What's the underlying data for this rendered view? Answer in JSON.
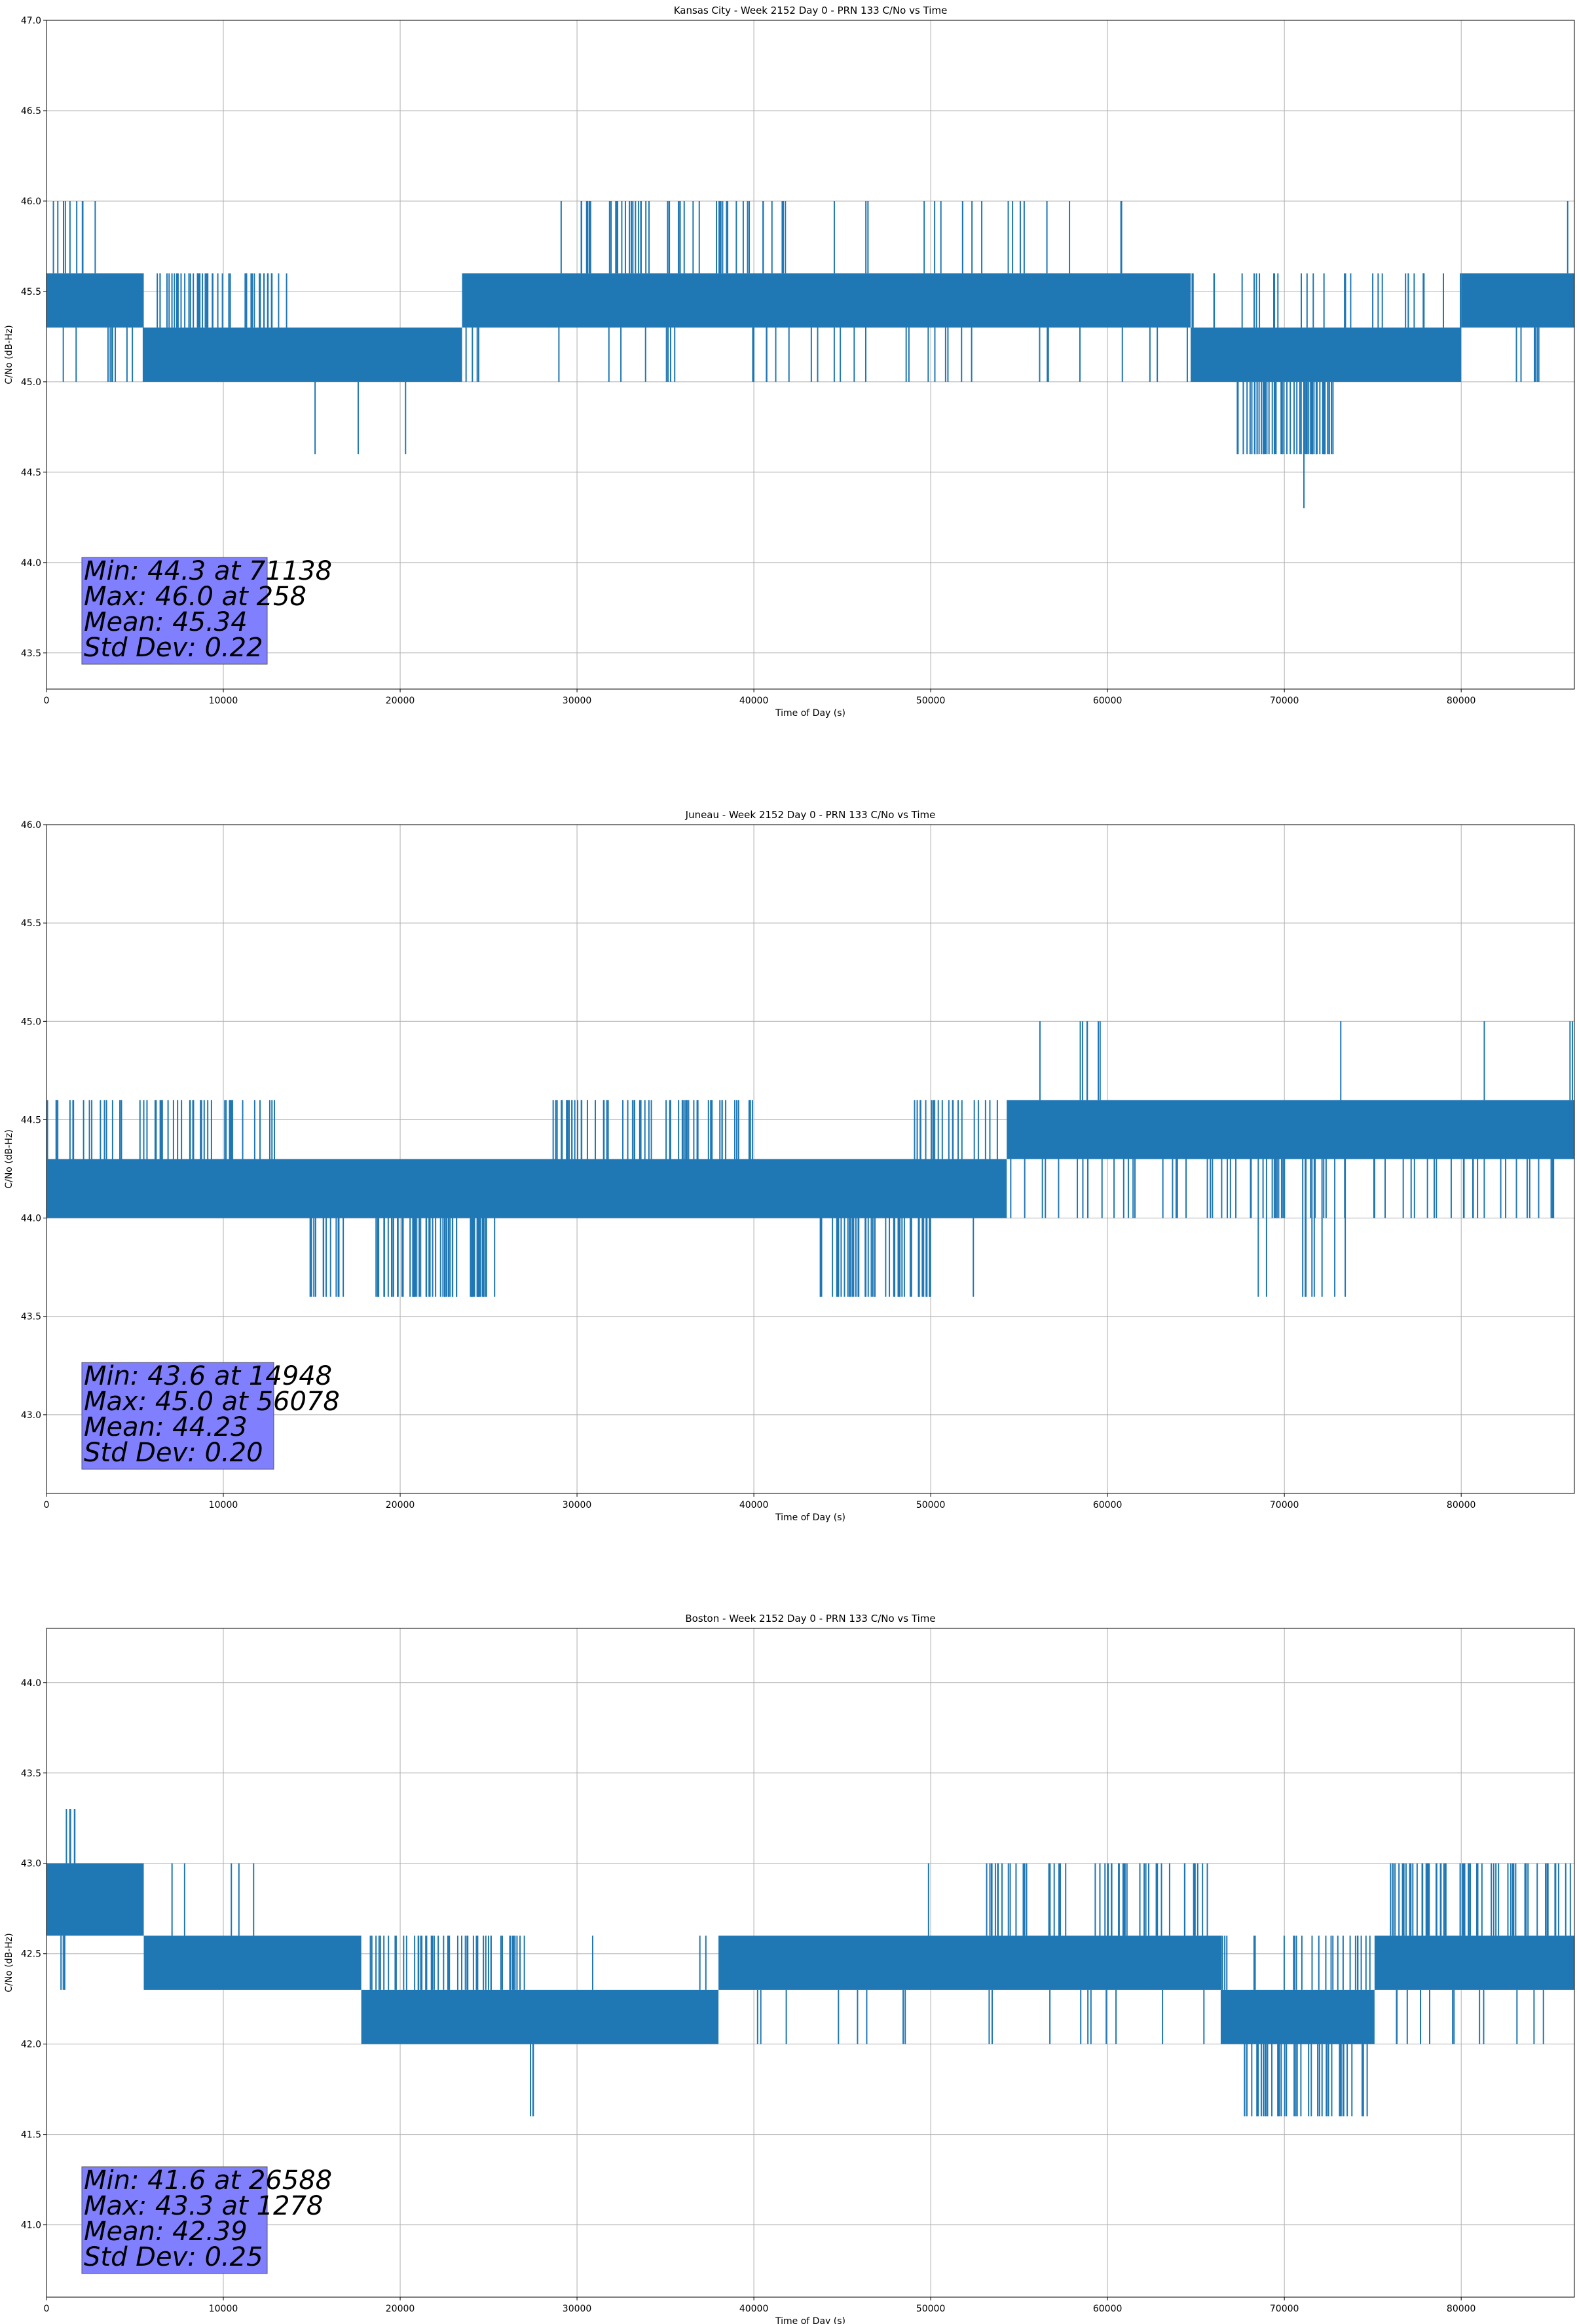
{
  "chart_data": [
    {
      "type": "line",
      "title": "Kansas City - Week 2152 Day 0 - PRN 133 C/No vs Time",
      "xlabel": "Time of Day (s)",
      "ylabel": "C/No (dB-Hz)",
      "xlim": [
        0,
        86400
      ],
      "ylim": [
        43.3,
        47.0
      ],
      "xticks": [
        0,
        10000,
        20000,
        30000,
        40000,
        50000,
        60000,
        70000,
        80000
      ],
      "yticks": [
        43.5,
        44.0,
        44.5,
        45.0,
        45.5,
        46.0,
        46.5,
        47.0
      ],
      "yticks_labels": [
        "43.5",
        "44.0",
        "44.5",
        "45.0",
        "45.5",
        "46.0",
        "46.5",
        "47.0"
      ],
      "grid": true,
      "series_color": "#1f77b4",
      "stats_text": [
        "Min: 44.3 at 71138",
        "Max: 46.0 at 258",
        "Mean: 45.34",
        "Std Dev: 0.22"
      ],
      "segments": [
        {
          "x0": 0,
          "x1": 5500,
          "lo": 45.3,
          "hi": 45.6
        },
        {
          "x0": 5500,
          "x1": 23500,
          "lo": 45.0,
          "hi": 45.3
        },
        {
          "x0": 23500,
          "x1": 64700,
          "lo": 45.3,
          "hi": 45.6
        },
        {
          "x0": 64700,
          "x1": 80000,
          "lo": 45.0,
          "hi": 45.3
        },
        {
          "x0": 80000,
          "x1": 86400,
          "lo": 45.3,
          "hi": 45.6
        }
      ],
      "band_lines": [
        {
          "x0": 0,
          "x1": 5500,
          "lo": 45.0,
          "hi": 45.3,
          "n": 10
        },
        {
          "x0": 5500,
          "x1": 13800,
          "lo": 45.3,
          "hi": 45.6,
          "n": 45
        },
        {
          "x0": 23500,
          "x1": 64700,
          "lo": 45.0,
          "hi": 45.3,
          "n": 40
        },
        {
          "x0": 64700,
          "x1": 80000,
          "lo": 45.3,
          "hi": 45.6,
          "n": 30
        },
        {
          "x0": 80000,
          "x1": 86400,
          "lo": 45.0,
          "hi": 45.3,
          "n": 6
        }
      ],
      "spikes_up": [
        {
          "x0": 0,
          "x1": 3000,
          "hi": 46.0,
          "n": 10
        },
        {
          "x0": 29000,
          "x1": 42000,
          "hi": 46.0,
          "n": 50
        },
        {
          "x0": 44000,
          "x1": 62000,
          "hi": 46.0,
          "n": 18
        },
        {
          "x0": 85900,
          "x1": 86200,
          "hi": 46.0,
          "n": 1
        }
      ],
      "spikes_down": [
        {
          "x0": 15100,
          "x1": 15200,
          "lo": 44.6,
          "n": 1
        },
        {
          "x0": 17600,
          "x1": 17700,
          "lo": 44.6,
          "n": 1
        },
        {
          "x0": 20300,
          "x1": 20400,
          "lo": 44.6,
          "n": 1
        },
        {
          "x0": 67200,
          "x1": 72800,
          "lo": 44.6,
          "n": 55
        },
        {
          "x0": 71100,
          "x1": 71200,
          "lo": 44.3,
          "n": 1
        }
      ]
    },
    {
      "type": "line",
      "title": "Juneau - Week 2152 Day 0 - PRN 133 C/No vs Time",
      "xlabel": "Time of Day (s)",
      "ylabel": "C/No (dB-Hz)",
      "xlim": [
        0,
        86400
      ],
      "ylim": [
        42.6,
        46.0
      ],
      "xticks": [
        0,
        10000,
        20000,
        30000,
        40000,
        50000,
        60000,
        70000,
        80000
      ],
      "yticks": [
        43.0,
        43.5,
        44.0,
        44.5,
        45.0,
        45.5,
        46.0
      ],
      "yticks_labels": [
        "43.0",
        "43.5",
        "44.0",
        "44.5",
        "45.0",
        "45.5",
        "46.0"
      ],
      "grid": true,
      "series_color": "#1f77b4",
      "stats_text": [
        "Min: 43.6 at 14948",
        "Max: 45.0 at 56078",
        "Mean: 44.23",
        "Std Dev: 0.20"
      ],
      "segments": [
        {
          "x0": 0,
          "x1": 54300,
          "lo": 44.0,
          "hi": 44.3
        },
        {
          "x0": 54300,
          "x1": 86400,
          "lo": 44.3,
          "hi": 44.6
        }
      ],
      "band_lines": [
        {
          "x0": 0,
          "x1": 13000,
          "lo": 44.3,
          "hi": 44.6,
          "n": 50
        },
        {
          "x0": 28500,
          "x1": 40000,
          "lo": 44.3,
          "hi": 44.6,
          "n": 60
        },
        {
          "x0": 49000,
          "x1": 54300,
          "lo": 44.3,
          "hi": 44.6,
          "n": 20
        },
        {
          "x0": 54300,
          "x1": 86400,
          "lo": 44.0,
          "hi": 44.3,
          "n": 70
        }
      ],
      "spikes_up": [
        {
          "x0": 55900,
          "x1": 56200,
          "hi": 45.0,
          "n": 1
        },
        {
          "x0": 58400,
          "x1": 59000,
          "hi": 45.0,
          "n": 4
        },
        {
          "x0": 59400,
          "x1": 59700,
          "hi": 45.0,
          "n": 2
        },
        {
          "x0": 73100,
          "x1": 73300,
          "hi": 45.0,
          "n": 1
        },
        {
          "x0": 81300,
          "x1": 81500,
          "hi": 45.0,
          "n": 1
        },
        {
          "x0": 86000,
          "x1": 86300,
          "hi": 45.0,
          "n": 2
        }
      ],
      "spikes_down": [
        {
          "x0": 14900,
          "x1": 16900,
          "lo": 43.6,
          "n": 12
        },
        {
          "x0": 18600,
          "x1": 25500,
          "lo": 43.6,
          "n": 60
        },
        {
          "x0": 43700,
          "x1": 50000,
          "lo": 43.6,
          "n": 45
        },
        {
          "x0": 52400,
          "x1": 52500,
          "lo": 43.6,
          "n": 1
        },
        {
          "x0": 66400,
          "x1": 73700,
          "lo": 43.6,
          "n": 10
        }
      ]
    },
    {
      "type": "line",
      "title": "Boston - Week 2152 Day 0 - PRN 133 C/No vs Time",
      "xlabel": "Time of Day (s)",
      "ylabel": "C/No (dB-Hz)",
      "xlim": [
        0,
        86400
      ],
      "ylim": [
        40.6,
        44.3
      ],
      "xticks": [
        0,
        10000,
        20000,
        30000,
        40000,
        50000,
        60000,
        70000,
        80000
      ],
      "yticks": [
        41.0,
        41.5,
        42.0,
        42.5,
        43.0,
        43.5,
        44.0
      ],
      "yticks_labels": [
        "41.0",
        "41.5",
        "42.0",
        "42.5",
        "43.0",
        "43.5",
        "44.0"
      ],
      "grid": true,
      "series_color": "#1f77b4",
      "stats_text": [
        "Min: 41.6 at 26588",
        "Max: 43.3 at 1278",
        "Mean: 42.39",
        "Std Dev: 0.25"
      ],
      "segments": [
        {
          "x0": 0,
          "x1": 5500,
          "lo": 42.6,
          "hi": 43.0
        },
        {
          "x0": 5500,
          "x1": 17800,
          "lo": 42.3,
          "hi": 42.6
        },
        {
          "x0": 17800,
          "x1": 38000,
          "lo": 42.0,
          "hi": 42.3
        },
        {
          "x0": 38000,
          "x1": 66400,
          "lo": 42.3,
          "hi": 42.6
        },
        {
          "x0": 66400,
          "x1": 75100,
          "lo": 42.0,
          "hi": 42.3
        },
        {
          "x0": 75100,
          "x1": 86400,
          "lo": 42.3,
          "hi": 42.6
        }
      ],
      "band_lines": [
        {
          "x0": 17800,
          "x1": 27200,
          "lo": 42.3,
          "hi": 42.6,
          "n": 50
        },
        {
          "x0": 28700,
          "x1": 38000,
          "lo": 42.3,
          "hi": 42.6,
          "n": 3
        },
        {
          "x0": 38000,
          "x1": 66400,
          "lo": 42.0,
          "hi": 42.3,
          "n": 18
        },
        {
          "x0": 66400,
          "x1": 75100,
          "lo": 42.3,
          "hi": 42.6,
          "n": 25
        },
        {
          "x0": 75100,
          "x1": 86400,
          "lo": 42.0,
          "hi": 42.3,
          "n": 12
        }
      ],
      "spikes_up": [
        {
          "x0": 1100,
          "x1": 2100,
          "hi": 43.3,
          "n": 5
        },
        {
          "x0": 5500,
          "x1": 14600,
          "hi": 43.0,
          "n": 5
        },
        {
          "x0": 49700,
          "x1": 50000,
          "hi": 43.0,
          "n": 1
        },
        {
          "x0": 53000,
          "x1": 66500,
          "hi": 43.0,
          "n": 50
        },
        {
          "x0": 76000,
          "x1": 86400,
          "hi": 43.0,
          "n": 60
        }
      ],
      "spikes_down": [
        {
          "x0": 800,
          "x1": 1300,
          "lo": 42.3,
          "n": 3
        },
        {
          "x0": 26500,
          "x1": 27600,
          "lo": 41.6,
          "n": 3
        },
        {
          "x0": 67600,
          "x1": 75000,
          "lo": 41.6,
          "n": 45
        }
      ]
    }
  ]
}
